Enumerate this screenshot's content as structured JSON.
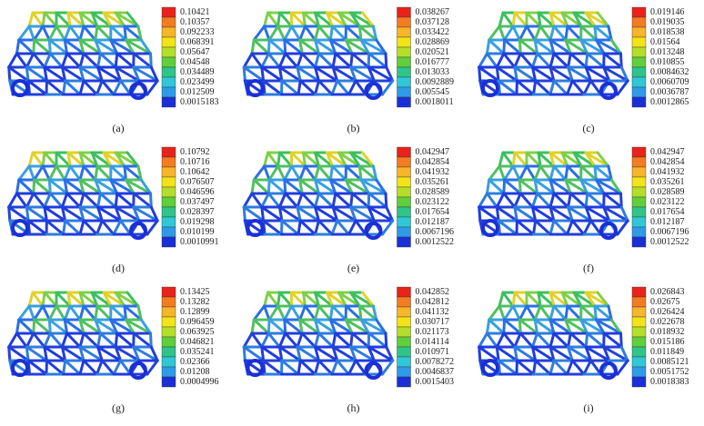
{
  "panels": [
    {
      "label": "(a)",
      "colorbar": [
        "0.10421",
        "0.10357",
        "0.092233",
        "0.068391",
        "0.05647",
        "0.04548",
        "0.034489",
        "0.023499",
        "0.012509",
        "0.0015183"
      ]
    },
    {
      "label": "(b)",
      "colorbar": [
        "0.038267",
        "0.037128",
        "0.033422",
        "0.028869",
        "0.020521",
        "0.016777",
        "0.013033",
        "0.0092889",
        "0.005545",
        "0.0018011"
      ]
    },
    {
      "label": "(c)",
      "colorbar": [
        "0.019146",
        "0.019035",
        "0.018538",
        "0.01564",
        "0.013248",
        "0.010855",
        "0.0084632",
        "0.0060709",
        "0.0036787",
        "0.0012865"
      ]
    },
    {
      "label": "(d)",
      "colorbar": [
        "0.10792",
        "0.10716",
        "0.10642",
        "0.076507",
        "0.046596",
        "0.037497",
        "0.028397",
        "0.019298",
        "0.010199",
        "0.0010991"
      ]
    },
    {
      "label": "(e)",
      "colorbar": [
        "0.042947",
        "0.042854",
        "0.041932",
        "0.035261",
        "0.028589",
        "0.023122",
        "0.017654",
        "0.012187",
        "0.0067196",
        "0.0012522"
      ]
    },
    {
      "label": "(f)",
      "colorbar": [
        "0.042947",
        "0.042854",
        "0.041932",
        "0.035261",
        "0.028589",
        "0.023122",
        "0.017654",
        "0.012187",
        "0.0067196",
        "0.0012522"
      ]
    },
    {
      "label": "(g)",
      "colorbar": [
        "0.13425",
        "0.13282",
        "0.12899",
        "0.096459",
        "0.063925",
        "0.046821",
        "0.035241",
        "0.02366",
        "0.01208",
        "0.0004996"
      ]
    },
    {
      "label": "(h)",
      "colorbar": [
        "0.042852",
        "0.042812",
        "0.041132",
        "0.030717",
        "0.021173",
        "0.014114",
        "0.010971",
        "0.0078272",
        "0.0046837",
        "0.0015403"
      ]
    },
    {
      "label": "(i)",
      "colorbar": [
        "0.026843",
        "0.02675",
        "0.026424",
        "0.022678",
        "0.018932",
        "0.015186",
        "0.011849",
        "0.0085121",
        "0.0051752",
        "0.0018383"
      ]
    }
  ]
}
